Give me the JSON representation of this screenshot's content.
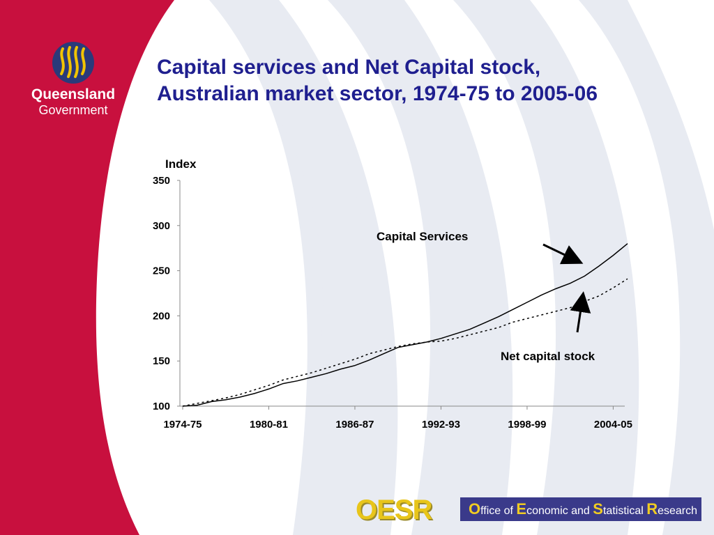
{
  "slide": {
    "title_line1": "Capital services and Net Capital stock,",
    "title_line2": "Australian market sector, 1974-75 to 2005-06"
  },
  "logo": {
    "name_line1": "Queensland",
    "name_line2": "Government",
    "colors": {
      "red": "#c8103e",
      "navy": "#2a3a7a",
      "gold": "#f2c400"
    }
  },
  "footer": {
    "mark": "OESR",
    "parts": [
      {
        "cap": "O",
        "rest": "ffice of "
      },
      {
        "cap": "E",
        "rest": "conomic and "
      },
      {
        "cap": "S",
        "rest": "tatistical "
      },
      {
        "cap": "R",
        "rest": "esearch"
      }
    ]
  },
  "colors": {
    "title": "#1f1f8f",
    "side_band": "#c8103e",
    "watermark": "#e8ebf2"
  },
  "chart_data": {
    "type": "line",
    "title": "",
    "xlabel": "",
    "ylabel": "Index",
    "ylim": [
      100,
      350
    ],
    "yticks": [
      100,
      150,
      200,
      250,
      300,
      350
    ],
    "xtick_labels": [
      "1974-75",
      "1980-81",
      "1986-87",
      "1992-93",
      "1998-99",
      "2004-05"
    ],
    "x": [
      "1974-75",
      "1975-76",
      "1976-77",
      "1977-78",
      "1978-79",
      "1979-80",
      "1980-81",
      "1981-82",
      "1982-83",
      "1983-84",
      "1984-85",
      "1985-86",
      "1986-87",
      "1987-88",
      "1988-89",
      "1989-90",
      "1990-91",
      "1991-92",
      "1992-93",
      "1993-94",
      "1994-95",
      "1995-96",
      "1996-97",
      "1997-98",
      "1998-99",
      "1999-00",
      "2000-01",
      "2001-02",
      "2002-03",
      "2003-04",
      "2004-05",
      "2005-06"
    ],
    "grid": false,
    "series": [
      {
        "name": "Capital Services",
        "style": "solid",
        "values": [
          100,
          101,
          105,
          107,
          110,
          114,
          119,
          125,
          128,
          132,
          136,
          141,
          145,
          151,
          158,
          165,
          168,
          171,
          175,
          180,
          185,
          192,
          199,
          207,
          215,
          223,
          230,
          236,
          244,
          255,
          267,
          280
        ]
      },
      {
        "name": "Net capital stock",
        "style": "dotted",
        "values": [
          100,
          103,
          106,
          109,
          113,
          118,
          123,
          129,
          133,
          137,
          142,
          147,
          152,
          158,
          162,
          166,
          169,
          171,
          172,
          175,
          179,
          183,
          187,
          193,
          197,
          201,
          205,
          209,
          216,
          222,
          231,
          241
        ]
      }
    ],
    "annotations": [
      {
        "text": "Capital Services",
        "points_to": "Capital Services"
      },
      {
        "text": "Net capital stock",
        "points_to": "Net capital stock"
      }
    ]
  }
}
